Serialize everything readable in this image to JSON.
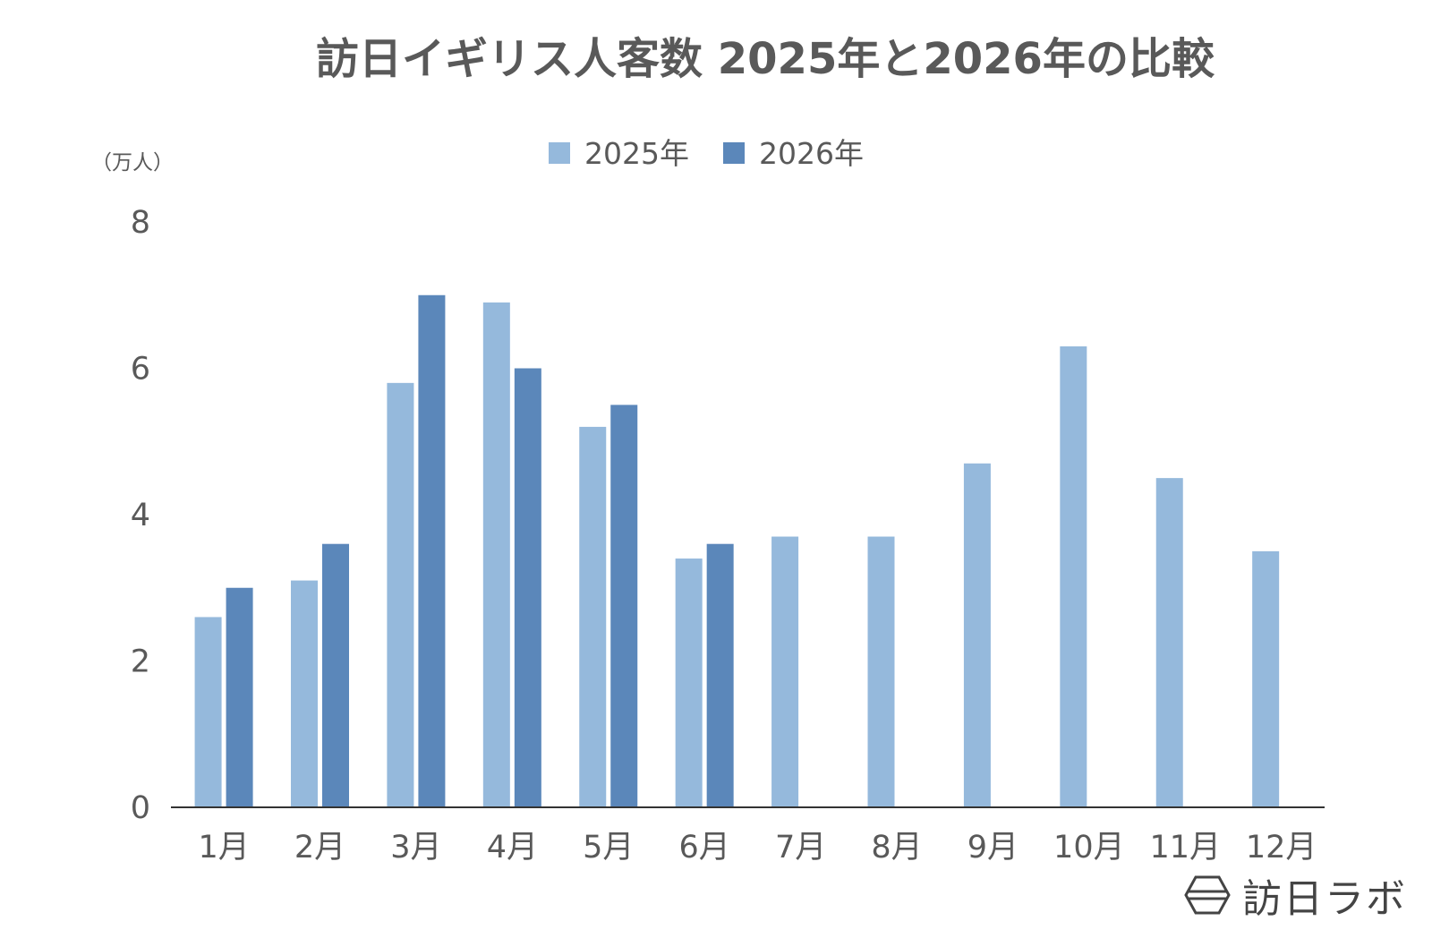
{
  "chart_data": {
    "type": "bar",
    "title": "訪日イギリス人客数 2025年と2026年の比較",
    "unit_label": "（万人）",
    "categories": [
      "1月",
      "2月",
      "3月",
      "4月",
      "5月",
      "6月",
      "7月",
      "8月",
      "9月",
      "10月",
      "11月",
      "12月"
    ],
    "series": [
      {
        "name": "2025年",
        "color": "#95b9dc",
        "values": [
          2.6,
          3.1,
          5.8,
          6.9,
          5.2,
          3.4,
          3.7,
          3.7,
          4.7,
          6.3,
          4.5,
          3.5
        ]
      },
      {
        "name": "2026年",
        "color": "#5b87ba",
        "values": [
          3.0,
          3.6,
          7.0,
          6.0,
          5.5,
          3.6,
          null,
          null,
          null,
          null,
          null,
          null
        ]
      }
    ],
    "ylim": [
      0,
      8
    ],
    "yticks": [
      0,
      2,
      4,
      6,
      8
    ],
    "grid": false,
    "legend_position": "top-center"
  },
  "brand": {
    "name": "訪日ラボ",
    "icon": "hexagon-logo-icon"
  }
}
